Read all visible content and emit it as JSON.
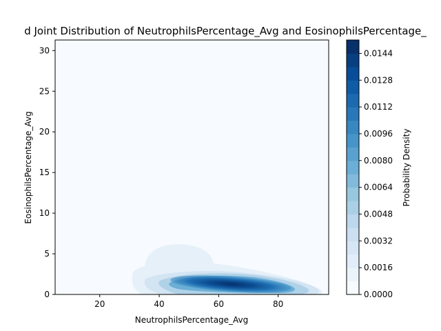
{
  "chart_data": {
    "type": "heatmap",
    "subtype": "filled-contour (kernel density estimate)",
    "title": "d Joint Distribution of NeutrophilsPercentage_Avg and EosinophilsPercentage_",
    "xlabel": "NeutrophilsPercentage_Avg",
    "ylabel": "EosinophilsPercentage_Avg",
    "xlim": [
      5,
      97
    ],
    "ylim": [
      0,
      31.3
    ],
    "xticks": [
      20,
      40,
      60,
      80
    ],
    "yticks": [
      0,
      5,
      10,
      15,
      20,
      25,
      30
    ],
    "grid": false,
    "legend": "none",
    "density_peak": {
      "x": 66,
      "y": 1.0,
      "density": 0.0152
    },
    "density_regions": [
      {
        "level": 0.0008,
        "x_range": [
          34,
          97
        ],
        "y_range": [
          0,
          6.2
        ]
      },
      {
        "level": 0.0024,
        "x_range": [
          48,
          88
        ],
        "y_range": [
          0,
          2.8
        ]
      },
      {
        "level": 0.0064,
        "x_range": [
          54,
          80
        ],
        "y_range": [
          0.3,
          2.2
        ]
      },
      {
        "level": 0.0112,
        "x_range": [
          60,
          72
        ],
        "y_range": [
          0.6,
          1.5
        ]
      }
    ],
    "colorbar": {
      "label": "Probability Density",
      "colormap": "Blues",
      "min": 0.0,
      "max": 0.0152,
      "levels": 19,
      "ticks": [
        "0.0000",
        "0.0016",
        "0.0032",
        "0.0048",
        "0.0064",
        "0.0080",
        "0.0096",
        "0.0112",
        "0.0128",
        "0.0144"
      ]
    }
  }
}
